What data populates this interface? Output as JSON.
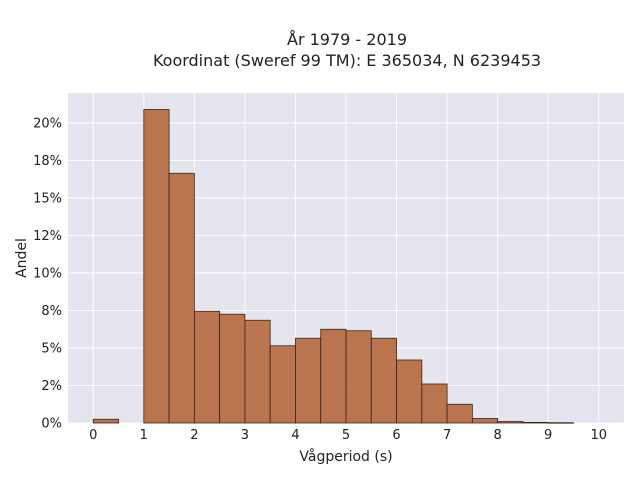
{
  "chart_data": {
    "type": "bar",
    "title_line1": "År 1979 - 2019",
    "title_line2": "Koordinat (Sweref 99 TM): E 365034, N 6239453",
    "xlabel": "Vågperiod (s)",
    "ylabel": "Andel",
    "xlim": [
      -0.5,
      10.5
    ],
    "ylim": [
      0,
      0.22
    ],
    "grid": true,
    "x_ticks": [
      0,
      1,
      2,
      3,
      4,
      5,
      6,
      7,
      8,
      9,
      10
    ],
    "y_ticks": [
      {
        "value": 0.0,
        "label": "0%"
      },
      {
        "value": 0.025,
        "label": "2%"
      },
      {
        "value": 0.05,
        "label": "5%"
      },
      {
        "value": 0.075,
        "label": "8%"
      },
      {
        "value": 0.1,
        "label": "10%"
      },
      {
        "value": 0.125,
        "label": "12%"
      },
      {
        "value": 0.15,
        "label": "15%"
      },
      {
        "value": 0.175,
        "label": "18%"
      },
      {
        "value": 0.2,
        "label": "20%"
      }
    ],
    "bin_width": 0.5,
    "bins": [
      {
        "start": 0.0,
        "value": 0.0025
      },
      {
        "start": 0.5,
        "value": 0.0
      },
      {
        "start": 1.0,
        "value": 0.209
      },
      {
        "start": 1.5,
        "value": 0.1665
      },
      {
        "start": 2.0,
        "value": 0.0745
      },
      {
        "start": 2.5,
        "value": 0.0725
      },
      {
        "start": 3.0,
        "value": 0.0685
      },
      {
        "start": 3.5,
        "value": 0.0515
      },
      {
        "start": 4.0,
        "value": 0.0565
      },
      {
        "start": 4.5,
        "value": 0.0625
      },
      {
        "start": 5.0,
        "value": 0.0615
      },
      {
        "start": 5.5,
        "value": 0.0565
      },
      {
        "start": 6.0,
        "value": 0.042
      },
      {
        "start": 6.5,
        "value": 0.026
      },
      {
        "start": 7.0,
        "value": 0.0125
      },
      {
        "start": 7.5,
        "value": 0.003
      },
      {
        "start": 8.0,
        "value": 0.001
      },
      {
        "start": 8.5,
        "value": 0.0004
      },
      {
        "start": 9.0,
        "value": 0.0002
      }
    ],
    "colors": {
      "bar": "#b5683d",
      "bar_edge": "#3a2418",
      "plot_bg": "#e5e5ef",
      "grid": "#ffffff"
    }
  }
}
